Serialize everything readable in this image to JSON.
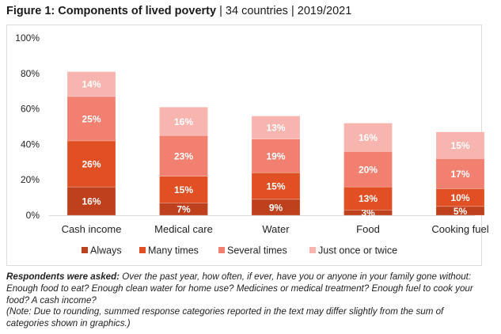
{
  "header": {
    "title_bold": "Figure 1: Components of lived poverty",
    "separator": "|",
    "countries": "34 countries",
    "years": "2019/2021"
  },
  "chart_data": {
    "type": "bar",
    "stacked": true,
    "title": "Figure 1: Components of lived poverty",
    "subtitle": "34 countries | 2019/2021",
    "categories": [
      "Cash income",
      "Medical care",
      "Water",
      "Food",
      "Cooking fuel"
    ],
    "series": [
      {
        "name": "Always",
        "color": "#bf401c",
        "values": [
          16,
          7,
          9,
          3,
          5
        ]
      },
      {
        "name": "Many times",
        "color": "#e05024",
        "values": [
          26,
          15,
          15,
          13,
          10
        ]
      },
      {
        "name": "Several times",
        "color": "#f28070",
        "values": [
          25,
          23,
          19,
          20,
          17
        ]
      },
      {
        "name": "Just once or twice",
        "color": "#f8b4ae",
        "values": [
          14,
          16,
          13,
          16,
          15
        ]
      }
    ],
    "yticks": [
      "0%",
      "20%",
      "40%",
      "60%",
      "80%",
      "100%"
    ],
    "ytick_values": [
      0,
      20,
      40,
      60,
      80,
      100
    ],
    "ylim": [
      0,
      100
    ],
    "xlabel": "",
    "ylabel": "",
    "grid": false,
    "legend": "bottom",
    "data_label_suffix": "%"
  },
  "note": {
    "lead": "Respondents were asked:",
    "question": " Over the past year, how often, if ever, have you or anyone in your family gone without: Enough food to eat? Enough clean water for home use? Medicines or medical treatment? Enough fuel to cook your food? A cash income?",
    "rounding": "(Note: Due to rounding, summed response categories reported in the text may differ slightly from the sum of categories shown in graphics.)"
  }
}
